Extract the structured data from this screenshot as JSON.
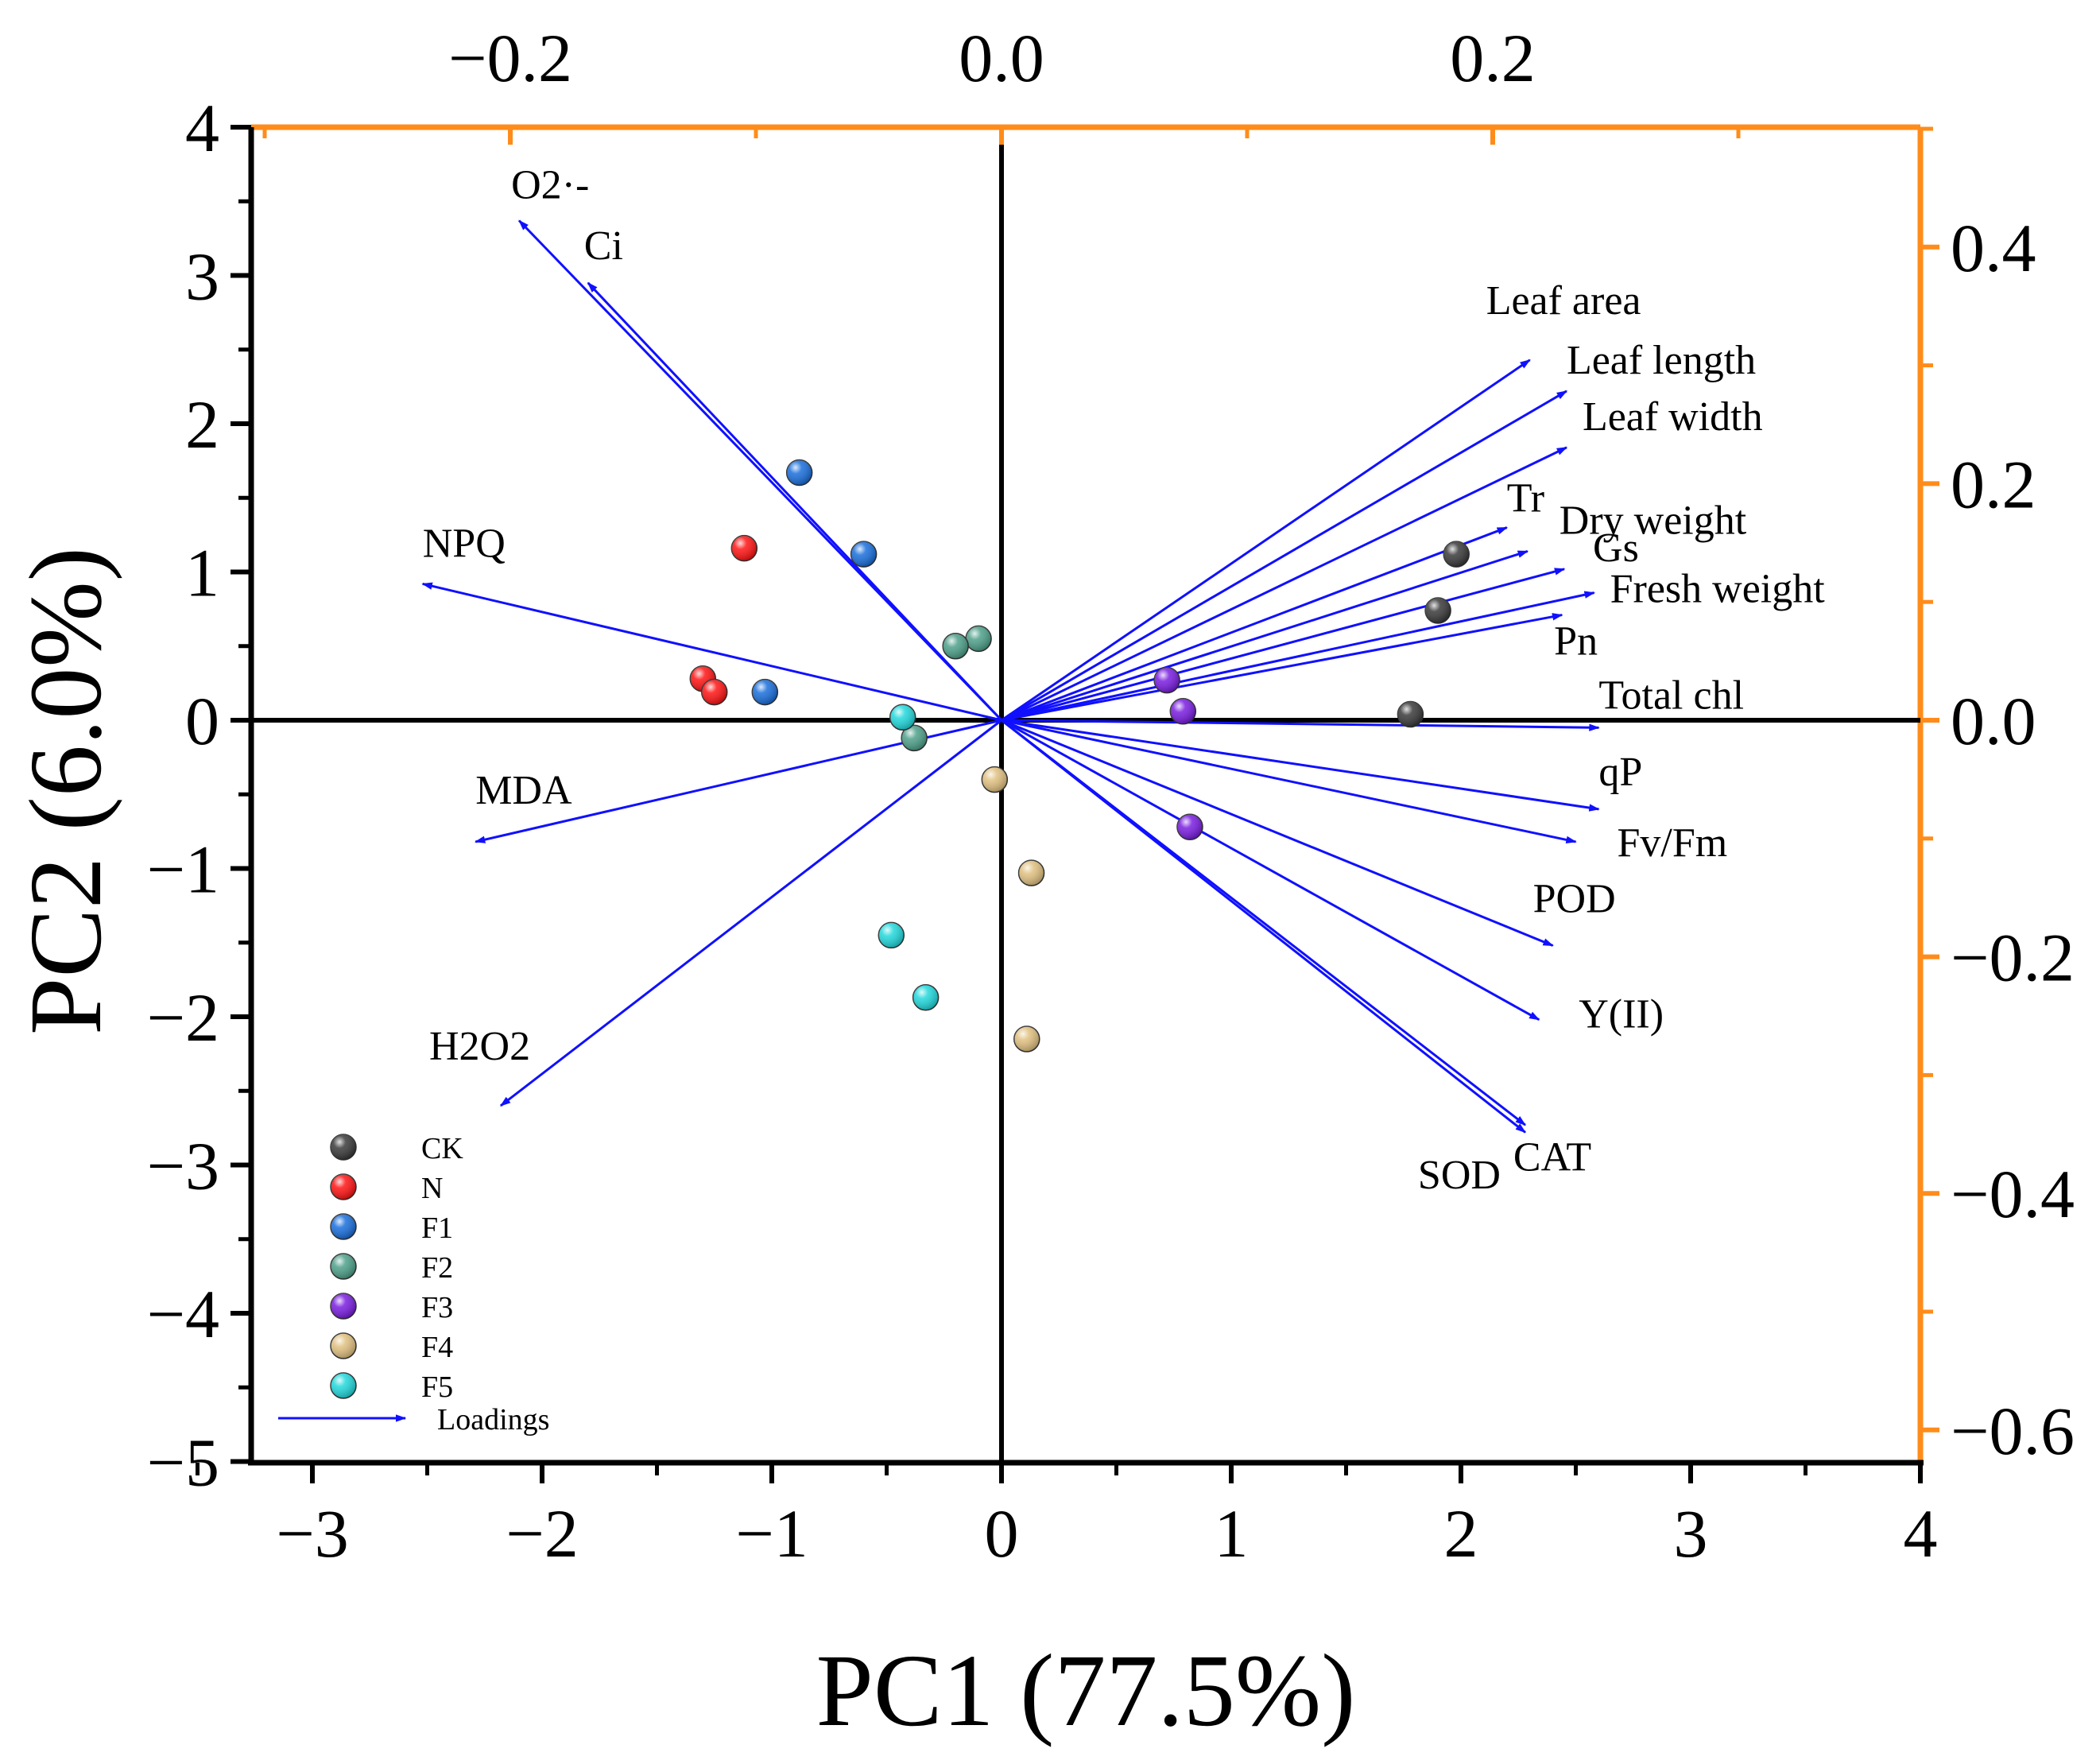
{
  "chart_data": {
    "type": "scatter",
    "title": "",
    "xlabel": "PC1 (77.5%)",
    "ylabel": "PC2 (6.0%)",
    "xlim": [
      -3.2,
      4
    ],
    "ylim": [
      -5,
      4
    ],
    "xticks": [
      -3,
      -2,
      -1,
      0,
      1,
      2,
      3,
      4
    ],
    "yticks": [
      -5,
      -4,
      -3,
      -2,
      -1,
      0,
      1,
      2,
      3,
      4
    ],
    "xtick_labels": [
      "−3",
      "−2",
      "−1",
      "0",
      "1",
      "2",
      "3",
      "4"
    ],
    "ytick_labels": [
      "−5",
      "−4",
      "−3",
      "−2",
      "−1",
      "0",
      "1",
      "2",
      "3",
      "4"
    ],
    "top_axis": {
      "ticks": [
        -0.2,
        0.0,
        0.2
      ],
      "labels": [
        "−0.2",
        "0.0",
        "0.2"
      ],
      "color": "#ff8c1a"
    },
    "right_axis": {
      "ticks": [
        0.4,
        0.2,
        0.0,
        -0.2,
        -0.4,
        -0.6
      ],
      "labels": [
        "0.4",
        "0.2",
        "0.0",
        "−0.2",
        "−0.4",
        "−0.6"
      ],
      "color": "#ff8c1a"
    },
    "legend_position": "bottom-left",
    "series": [
      {
        "name": "CK",
        "color": "#3a3a3a",
        "points": [
          [
            1.98,
            1.12
          ],
          [
            1.9,
            0.74
          ],
          [
            1.78,
            0.04
          ]
        ]
      },
      {
        "name": "N",
        "color": "#ff1414",
        "points": [
          [
            -1.12,
            1.16
          ],
          [
            -1.3,
            0.28
          ],
          [
            -1.25,
            0.19
          ]
        ]
      },
      {
        "name": "F1",
        "color": "#1a6fdc",
        "points": [
          [
            -0.88,
            1.67
          ],
          [
            -0.6,
            1.12
          ],
          [
            -1.03,
            0.19
          ]
        ]
      },
      {
        "name": "F2",
        "color": "#4ea08a",
        "points": [
          [
            -0.1,
            0.55
          ],
          [
            -0.2,
            0.5
          ],
          [
            -0.38,
            -0.12
          ]
        ]
      },
      {
        "name": "F3",
        "color": "#7a1ee0",
        "points": [
          [
            0.72,
            0.27
          ],
          [
            0.79,
            0.06
          ],
          [
            0.82,
            -0.72
          ]
        ]
      },
      {
        "name": "F4",
        "color": "#e0c080",
        "points": [
          [
            -0.03,
            -0.4
          ],
          [
            0.13,
            -1.03
          ],
          [
            0.11,
            -2.15
          ]
        ]
      },
      {
        "name": "F5",
        "color": "#22d8dc",
        "points": [
          [
            -0.43,
            0.02
          ],
          [
            -0.48,
            -1.45
          ],
          [
            -0.33,
            -1.87
          ]
        ]
      }
    ],
    "loadings_legend": "Loadings",
    "loadings_color": "#1010ff",
    "loadings": [
      {
        "name": "O2·-",
        "x": -2.1,
        "y": 3.37
      },
      {
        "name": "Ci",
        "x": -1.8,
        "y": 2.95
      },
      {
        "name": "NPQ",
        "x": -2.52,
        "y": 0.92
      },
      {
        "name": "MDA",
        "x": -2.29,
        "y": -0.82
      },
      {
        "name": "H2O2",
        "x": -2.18,
        "y": -2.6
      },
      {
        "name": "Leaf area",
        "x": 2.3,
        "y": 2.43
      },
      {
        "name": "Leaf length",
        "x": 2.46,
        "y": 2.22
      },
      {
        "name": "Leaf width",
        "x": 2.46,
        "y": 1.84
      },
      {
        "name": "Tr",
        "x": 2.2,
        "y": 1.3
      },
      {
        "name": "Dry weight",
        "x": 2.29,
        "y": 1.14
      },
      {
        "name": "Gs",
        "x": 2.45,
        "y": 1.02
      },
      {
        "name": "Fresh weight",
        "x": 2.58,
        "y": 0.86
      },
      {
        "name": "Pn",
        "x": 2.44,
        "y": 0.71
      },
      {
        "name": "Total chl",
        "x": 2.6,
        "y": -0.05
      },
      {
        "name": "qP",
        "x": 2.6,
        "y": -0.6
      },
      {
        "name": "Fv/Fm",
        "x": 2.5,
        "y": -0.82
      },
      {
        "name": "POD",
        "x": 2.4,
        "y": -1.52
      },
      {
        "name": "Y(II)",
        "x": 2.34,
        "y": -2.02
      },
      {
        "name": "CAT",
        "x": 2.28,
        "y": -2.78
      },
      {
        "name": "SOD",
        "x": 2.28,
        "y": -2.73
      }
    ]
  }
}
